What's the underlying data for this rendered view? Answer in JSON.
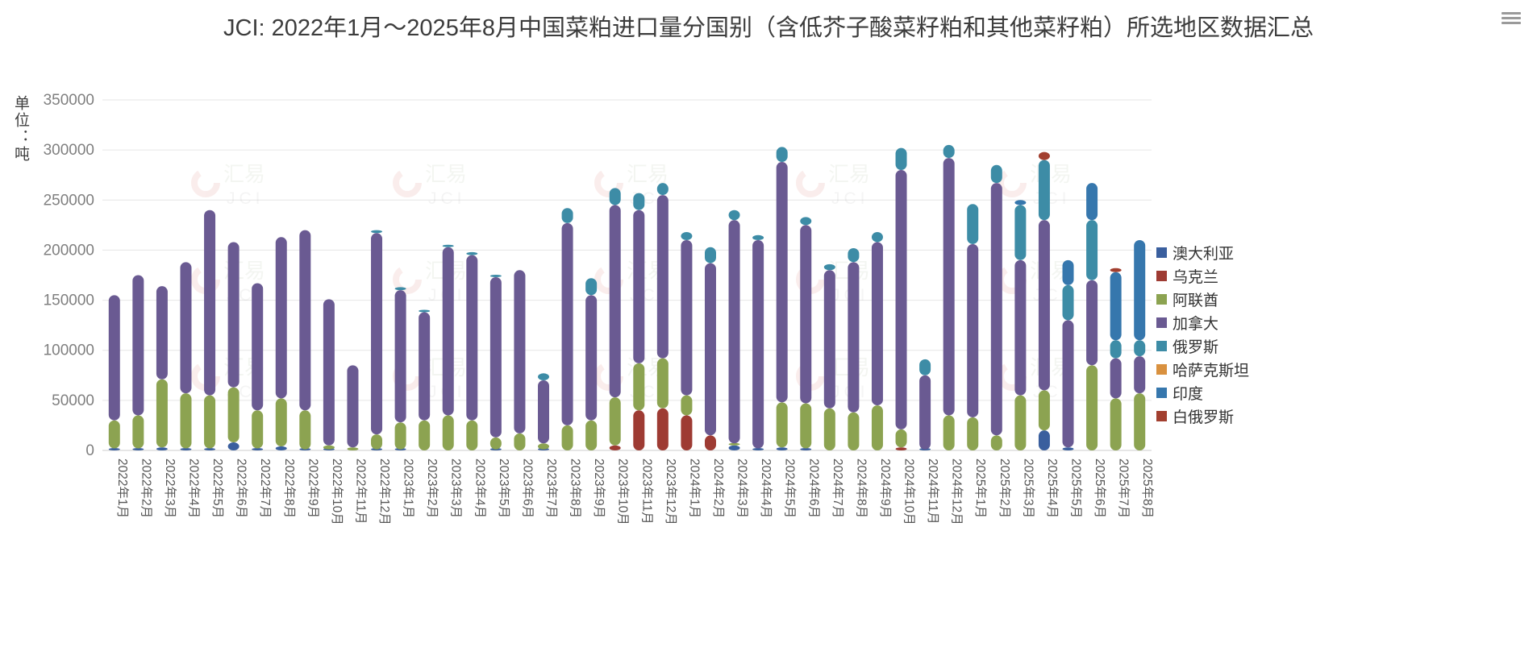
{
  "page": {
    "title": "JCI: 2022年1月～2025年8月中国菜粕进口量分国别（含低芥子酸菜籽粕和其他菜籽粕）所选地区数据汇总",
    "unit_label": "单位：吨",
    "watermark": {
      "text_cn": "汇易",
      "text_en": "JCI",
      "accent_color": "#cf5148",
      "cn_color": "#8fa882",
      "en_color": "#9a9a9a"
    },
    "icons": {
      "menu": "hamburger-menu"
    }
  },
  "chart_data": {
    "type": "bar",
    "stacked": true,
    "title": "JCI: 2022年1月～2025年8月中国菜粕进口量分国别（含低芥子酸菜籽粕和其他菜籽粕）所选地区数据汇总",
    "xlabel": "",
    "ylabel": "单位：吨",
    "ylim": [
      0,
      350000
    ],
    "ytick_interval": 50000,
    "grid": true,
    "legend_position": "right",
    "categories": [
      "2022年1月",
      "2022年2月",
      "2022年3月",
      "2022年4月",
      "2022年5月",
      "2022年6月",
      "2022年7月",
      "2022年8月",
      "2022年9月",
      "2022年10月",
      "2022年11月",
      "2022年12月",
      "2023年1月",
      "2023年2月",
      "2023年3月",
      "2023年4月",
      "2023年5月",
      "2023年6月",
      "2023年7月",
      "2023年8月",
      "2023年9月",
      "2023年10月",
      "2023年11月",
      "2023年12月",
      "2024年1月",
      "2024年2月",
      "2024年3月",
      "2024年4月",
      "2024年5月",
      "2024年6月",
      "2024年7月",
      "2024年8月",
      "2024年9月",
      "2024年10月",
      "2024年11月",
      "2024年12月",
      "2025年1月",
      "2025年2月",
      "2025年3月",
      "2025年4月",
      "2025年5月",
      "2025年6月",
      "2025年7月",
      "2025年8月"
    ],
    "series": [
      {
        "name": "澳大利亚",
        "color": "#3a5f9e",
        "values": [
          2000,
          2000,
          3000,
          2000,
          2000,
          8000,
          2000,
          4000,
          1000,
          1000,
          0,
          1000,
          1000,
          0,
          0,
          0,
          1000,
          0,
          1000,
          0,
          0,
          0,
          0,
          0,
          0,
          0,
          5000,
          2000,
          3000,
          2000,
          0,
          0,
          0,
          0,
          1000,
          0,
          0,
          0,
          0,
          20000,
          3000,
          0,
          0,
          0
        ]
      },
      {
        "name": "乌克兰",
        "color": "#9e3b33",
        "values": [
          0,
          0,
          0,
          0,
          0,
          0,
          0,
          0,
          0,
          0,
          0,
          0,
          0,
          0,
          0,
          0,
          0,
          0,
          0,
          0,
          0,
          5000,
          40000,
          42000,
          35000,
          15000,
          0,
          0,
          0,
          0,
          0,
          0,
          0,
          3000,
          0,
          0,
          0,
          0,
          0,
          0,
          0,
          0,
          0,
          0
        ]
      },
      {
        "name": "阿联酋",
        "color": "#8ca351",
        "values": [
          28000,
          33000,
          68000,
          55000,
          53000,
          55000,
          38000,
          48000,
          39000,
          4000,
          3000,
          15000,
          27000,
          30000,
          35000,
          30000,
          12000,
          17000,
          6000,
          25000,
          30000,
          48000,
          47000,
          50000,
          20000,
          0,
          2000,
          0,
          45000,
          45000,
          42000,
          38000,
          45000,
          18000,
          0,
          35000,
          33000,
          15000,
          55000,
          40000,
          0,
          85000,
          52000,
          57000
        ]
      },
      {
        "name": "加拿大",
        "color": "#6a5a92",
        "values": [
          125000,
          140000,
          93000,
          131000,
          185000,
          145000,
          127000,
          161000,
          180000,
          146000,
          82000,
          201000,
          132000,
          108000,
          168000,
          165000,
          160000,
          163000,
          63000,
          202000,
          125000,
          192000,
          153000,
          163000,
          155000,
          172000,
          223000,
          208000,
          240000,
          178000,
          138000,
          150000,
          163000,
          259000,
          74000,
          257000,
          173000,
          252000,
          135000,
          170000,
          127000,
          85000,
          40000,
          37000
        ]
      },
      {
        "name": "俄罗斯",
        "color": "#3d8ca6",
        "values": [
          0,
          0,
          0,
          0,
          0,
          0,
          0,
          0,
          0,
          0,
          0,
          3000,
          3000,
          2000,
          2000,
          3000,
          2000,
          0,
          7000,
          15000,
          17000,
          17000,
          17000,
          12000,
          8000,
          16000,
          10000,
          5000,
          15000,
          8000,
          6000,
          14000,
          10000,
          22000,
          16000,
          13000,
          40000,
          18000,
          55000,
          60000,
          35000,
          60000,
          18000,
          16000
        ]
      },
      {
        "name": "哈萨克斯坦",
        "color": "#d9913f",
        "values": [
          0,
          0,
          0,
          0,
          0,
          0,
          0,
          0,
          0,
          0,
          0,
          0,
          0,
          0,
          0,
          0,
          0,
          0,
          0,
          0,
          0,
          0,
          0,
          0,
          0,
          0,
          0,
          0,
          0,
          0,
          0,
          0,
          0,
          0,
          0,
          0,
          0,
          0,
          0,
          0,
          0,
          0,
          0,
          0
        ]
      },
      {
        "name": "印度",
        "color": "#3677ad",
        "values": [
          0,
          0,
          0,
          0,
          0,
          0,
          0,
          0,
          0,
          0,
          0,
          0,
          0,
          0,
          0,
          0,
          0,
          0,
          0,
          0,
          0,
          0,
          0,
          0,
          0,
          0,
          0,
          0,
          0,
          0,
          0,
          0,
          0,
          0,
          0,
          0,
          0,
          0,
          5000,
          0,
          25000,
          37000,
          68000,
          100000
        ]
      },
      {
        "name": "白俄罗斯",
        "color": "#a23f2f",
        "values": [
          0,
          0,
          0,
          0,
          0,
          0,
          0,
          0,
          0,
          0,
          0,
          0,
          0,
          0,
          0,
          0,
          0,
          0,
          0,
          0,
          0,
          0,
          0,
          0,
          0,
          0,
          0,
          0,
          0,
          0,
          0,
          0,
          0,
          0,
          0,
          0,
          0,
          0,
          0,
          8000,
          0,
          0,
          4000,
          0
        ]
      }
    ]
  }
}
